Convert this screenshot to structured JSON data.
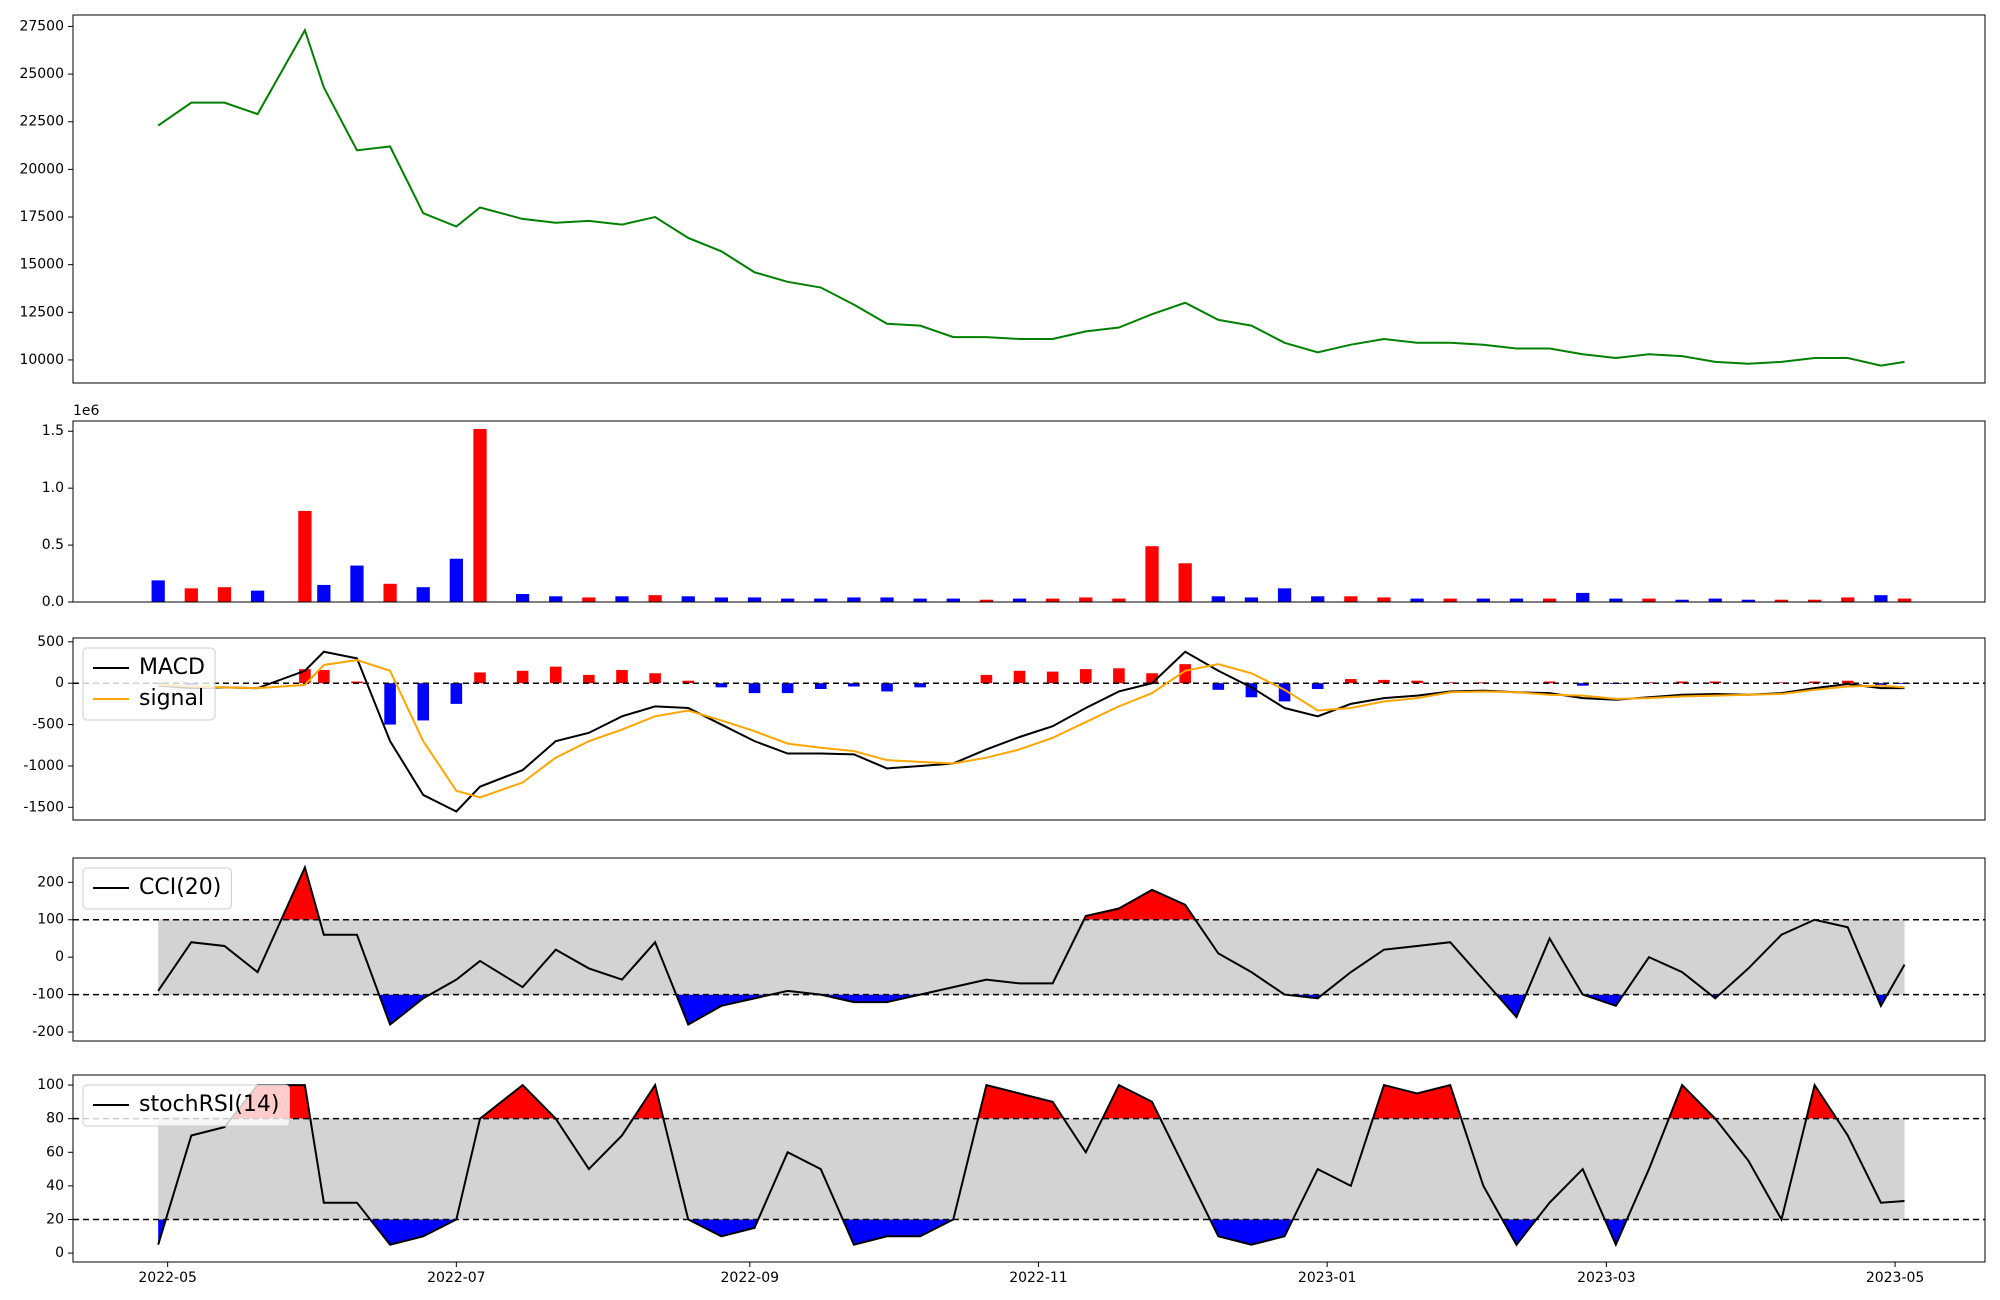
{
  "chart_data": [
    {
      "type": "line",
      "xlim": [
        -20,
        384
      ],
      "x": [
        -2,
        5,
        12,
        19,
        29,
        33,
        40,
        47,
        54,
        61,
        66,
        75,
        82,
        89,
        96,
        103,
        110,
        117,
        124,
        131,
        138,
        145,
        152,
        159,
        166,
        173,
        180,
        187,
        194,
        201,
        208,
        215,
        222,
        229,
        236,
        243,
        250,
        257,
        264,
        271,
        278,
        285,
        292,
        299,
        306,
        313,
        320,
        327,
        334,
        341,
        348,
        355,
        362,
        367
      ],
      "ylim": [
        8790,
        28100
      ],
      "yticks": [
        10000,
        12500,
        15000,
        17500,
        20000,
        22500,
        25000,
        27500
      ],
      "series": [
        {
          "color": "#008000",
          "values": [
            22300,
            23500,
            23500,
            22900,
            27300,
            24300,
            21000,
            21200,
            17700,
            17000,
            18000,
            17400,
            17200,
            17300,
            17100,
            17500,
            16400,
            15700,
            14600,
            14100,
            13800,
            12900,
            11900,
            11800,
            11200,
            11200,
            11100,
            11100,
            11500,
            11700,
            12400,
            13000,
            12100,
            11800,
            10900,
            10400,
            10800,
            11100,
            10900,
            10900,
            10800,
            10600,
            10600,
            10300,
            10100,
            10300,
            10200,
            9900,
            9800,
            9900,
            10100,
            10100,
            9700,
            9900
          ]
        }
      ]
    },
    {
      "type": "bar",
      "ylim": [
        0,
        1.59
      ],
      "y_offset_label": "1e6",
      "yticks": [
        {
          "value": 0,
          "label": "0.0"
        },
        0.5,
        {
          "value": 1,
          "label": "1.0"
        },
        1.5
      ],
      "up_color": "#ff0000",
      "down_color": "#0000ff",
      "values": [
        0.19,
        0.12,
        0.13,
        0.1,
        0.8,
        0.15,
        0.32,
        0.16,
        0.13,
        0.38,
        1.52,
        0.07,
        0.05,
        0.04,
        0.05,
        0.06,
        0.05,
        0.04,
        0.04,
        0.03,
        0.03,
        0.04,
        0.04,
        0.03,
        0.03,
        0.02,
        0.03,
        0.03,
        0.04,
        0.03,
        0.49,
        0.34,
        0.05,
        0.04,
        0.12,
        0.05,
        0.05,
        0.04,
        0.03,
        0.03,
        0.03,
        0.03,
        0.03,
        0.08,
        0.03,
        0.03,
        0.02,
        0.03,
        0.02,
        0.02,
        0.02,
        0.04,
        0.06,
        0.03
      ]
    },
    {
      "type": "line",
      "ylim": [
        -1653,
        546
      ],
      "yticks": [
        -1500,
        -1000,
        -500,
        0,
        500
      ],
      "hlines": [
        0
      ],
      "legend": "upper left",
      "series": [
        {
          "name": "MACD",
          "color": "#000000",
          "values": [
            -30,
            -60,
            -50,
            -60,
            150,
            380,
            300,
            -700,
            -1350,
            -1550,
            -1250,
            -1050,
            -700,
            -600,
            -400,
            -280,
            -300,
            -500,
            -700,
            -850,
            -850,
            -860,
            -1030,
            -1000,
            -970,
            -800,
            -650,
            -520,
            -300,
            -100,
            0,
            380,
            150,
            -50,
            -300,
            -400,
            -250,
            -180,
            -150,
            -100,
            -90,
            -110,
            -120,
            -180,
            -200,
            -170,
            -140,
            -130,
            -140,
            -120,
            -60,
            -10,
            -60,
            -60
          ]
        },
        {
          "name": "signal",
          "color": "#ffa500",
          "values": [
            -20,
            -40,
            -50,
            -60,
            -20,
            220,
            280,
            150,
            -700,
            -1300,
            -1380,
            -1200,
            -900,
            -700,
            -560,
            -400,
            -330,
            -450,
            -580,
            -730,
            -780,
            -820,
            -930,
            -950,
            -970,
            -900,
            -800,
            -660,
            -470,
            -280,
            -120,
            150,
            230,
            120,
            -80,
            -330,
            -300,
            -220,
            -180,
            -110,
            -100,
            -110,
            -140,
            -150,
            -190,
            -180,
            -160,
            -150,
            -140,
            -130,
            -80,
            -40,
            -30,
            -50
          ]
        }
      ],
      "histogram": {
        "up_color": "#ff0000",
        "down_color": "#0000ff",
        "values": [
          -10,
          -20,
          0,
          0,
          170,
          160,
          20,
          -500,
          -450,
          -250,
          130,
          150,
          200,
          100,
          160,
          120,
          30,
          -50,
          -120,
          -120,
          -70,
          -40,
          -100,
          -50,
          0,
          100,
          150,
          140,
          170,
          180,
          120,
          230,
          -80,
          -170,
          -220,
          -70,
          50,
          40,
          30,
          10,
          10,
          0,
          20,
          -30,
          -10,
          10,
          20,
          20,
          0,
          10,
          20,
          30,
          -30,
          -10
        ]
      }
    },
    {
      "type": "line",
      "ylim": [
        -224,
        265
      ],
      "yticks": [
        -200,
        -100,
        0,
        100,
        200
      ],
      "hlines": [
        100,
        -100
      ],
      "band": [
        -100,
        100
      ],
      "band_color": "#d3d3d3",
      "above_color": "#ff0000",
      "below_color": "#0000ff",
      "legend": "upper left",
      "series": [
        {
          "name": "CCI(20)",
          "color": "#000000",
          "values": [
            -90,
            40,
            30,
            -40,
            240,
            60,
            60,
            -180,
            -110,
            -60,
            -10,
            -80,
            20,
            -30,
            -60,
            40,
            -180,
            -130,
            -110,
            -90,
            -100,
            -120,
            -120,
            -100,
            -80,
            -60,
            -70,
            -70,
            110,
            130,
            180,
            140,
            10,
            -40,
            -100,
            -110,
            -40,
            20,
            30,
            40,
            -60,
            -160,
            50,
            -100,
            -130,
            0,
            -40,
            -110,
            -30,
            60,
            100,
            80,
            -130,
            -20
          ]
        }
      ]
    },
    {
      "type": "line",
      "ylim": [
        -5.3,
        106
      ],
      "yticks": [
        0,
        20,
        40,
        60,
        80,
        100
      ],
      "hlines": [
        80,
        20
      ],
      "band": [
        20,
        80
      ],
      "band_color": "#d3d3d3",
      "above_color": "#ff0000",
      "below_color": "#0000ff",
      "legend": "upper left",
      "xticks": [
        {
          "value": 0,
          "label": "2022-05"
        },
        {
          "value": 61,
          "label": "2022-07"
        },
        {
          "value": 123,
          "label": "2022-09"
        },
        {
          "value": 184,
          "label": "2022-11"
        },
        {
          "value": 245,
          "label": "2023-01"
        },
        {
          "value": 304,
          "label": "2023-03"
        },
        {
          "value": 365,
          "label": "2023-05"
        }
      ],
      "series": [
        {
          "name": "stochRSI(14)",
          "color": "#000000",
          "values": [
            5,
            70,
            75,
            100,
            100,
            30,
            30,
            5,
            10,
            20,
            80,
            100,
            80,
            50,
            70,
            100,
            20,
            10,
            15,
            60,
            50,
            5,
            10,
            10,
            20,
            100,
            95,
            90,
            60,
            100,
            90,
            50,
            10,
            5,
            10,
            50,
            40,
            100,
            95,
            100,
            40,
            5,
            30,
            50,
            5,
            50,
            100,
            80,
            55,
            20,
            100,
            70,
            30,
            31
          ]
        }
      ]
    }
  ]
}
